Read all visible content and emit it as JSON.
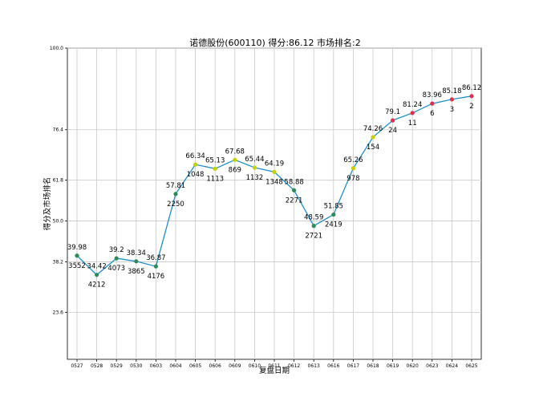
{
  "chart_data": {
    "type": "line",
    "title": "诺德股份(600110) 得分:86.12  市场排名:2",
    "xlabel": "复盘日期",
    "ylabel": "得分及市场排名",
    "grid": true,
    "x": [
      "0527",
      "0528",
      "0529",
      "0530",
      "0603",
      "0604",
      "0605",
      "0606",
      "0609",
      "0610",
      "0611",
      "0612",
      "0613",
      "0616",
      "0617",
      "0618",
      "0619",
      "0620",
      "0623",
      "0624",
      "0625"
    ],
    "score_labels": [
      "39.98",
      "34.42",
      "39.2",
      "38.34",
      "36.87",
      "57.81",
      "66.34",
      "65.13",
      "67.68",
      "65.44",
      "64.19",
      "58.88",
      "48.59",
      "51.85",
      "65.26",
      "74.26",
      "79.1",
      "81.24",
      "83.96",
      "85.18",
      "86.12"
    ],
    "series": [
      {
        "values": [
          39.98,
          34.42,
          39.2,
          38.34,
          36.87,
          57.81,
          66.34,
          65.13,
          67.68,
          65.44,
          64.19,
          58.88,
          48.59,
          51.85,
          65.26,
          74.26,
          79.1,
          81.24,
          83.96,
          85.18,
          86.12
        ],
        "color": "#1f8fc7"
      }
    ],
    "ranks": [
      "3552",
      "4212",
      "4073",
      "3865",
      "4176",
      "2250",
      "1048",
      "1113",
      "869",
      "1132",
      "1348",
      "2271",
      "2721",
      "2419",
      "978",
      "154",
      "24",
      "11",
      "6",
      "3",
      "2"
    ],
    "marker_colors": [
      "#2e8b57",
      "#2e8b57",
      "#2e8b57",
      "#2e8b57",
      "#2e8b57",
      "#2e8b57",
      "#c8d200",
      "#c8d200",
      "#c8d200",
      "#c8d200",
      "#c8d200",
      "#2e8b57",
      "#2e8b57",
      "#2e8b57",
      "#c8d200",
      "#c8d200",
      "#e0304e",
      "#e0304e",
      "#e0304e",
      "#e0304e",
      "#e0304e"
    ],
    "yticks": [
      "100.0",
      "76.4",
      "61.8",
      "50.0",
      "38.2",
      "23.6"
    ],
    "ytick_values": [
      100.0,
      76.4,
      61.8,
      50.0,
      38.2,
      23.6
    ],
    "ylim": [
      10,
      100
    ]
  }
}
